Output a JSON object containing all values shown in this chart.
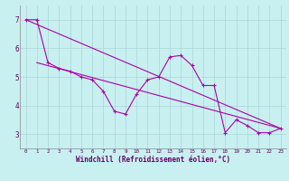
{
  "xlabel": "Windchill (Refroidissement éolien,°C)",
  "bg_color": "#c8f0f0",
  "grid_color": "#aad4d4",
  "line_color": "#aa00aa",
  "text_color": "#660066",
  "spine_color": "#888888",
  "xlim": [
    -0.5,
    23.5
  ],
  "ylim": [
    2.5,
    7.5
  ],
  "yticks": [
    3,
    4,
    5,
    6,
    7
  ],
  "xticks": [
    0,
    1,
    2,
    3,
    4,
    5,
    6,
    7,
    8,
    9,
    10,
    11,
    12,
    13,
    14,
    15,
    16,
    17,
    18,
    19,
    20,
    21,
    22,
    23
  ],
  "series1_x": [
    0,
    1,
    2,
    3,
    4,
    5,
    6,
    7,
    8,
    9,
    10,
    11,
    12,
    13,
    14,
    15,
    16,
    17,
    18,
    19,
    20,
    21,
    22,
    23
  ],
  "series1_y": [
    7.0,
    7.0,
    5.5,
    5.3,
    5.2,
    5.0,
    4.9,
    4.5,
    3.8,
    3.7,
    4.4,
    4.9,
    5.0,
    5.7,
    5.75,
    5.4,
    4.7,
    4.7,
    3.05,
    3.5,
    3.3,
    3.05,
    3.05,
    3.2
  ],
  "line1_x": [
    0,
    23
  ],
  "line1_y": [
    7.0,
    3.2
  ],
  "line2_x": [
    1,
    23
  ],
  "line2_y": [
    5.5,
    3.2
  ]
}
